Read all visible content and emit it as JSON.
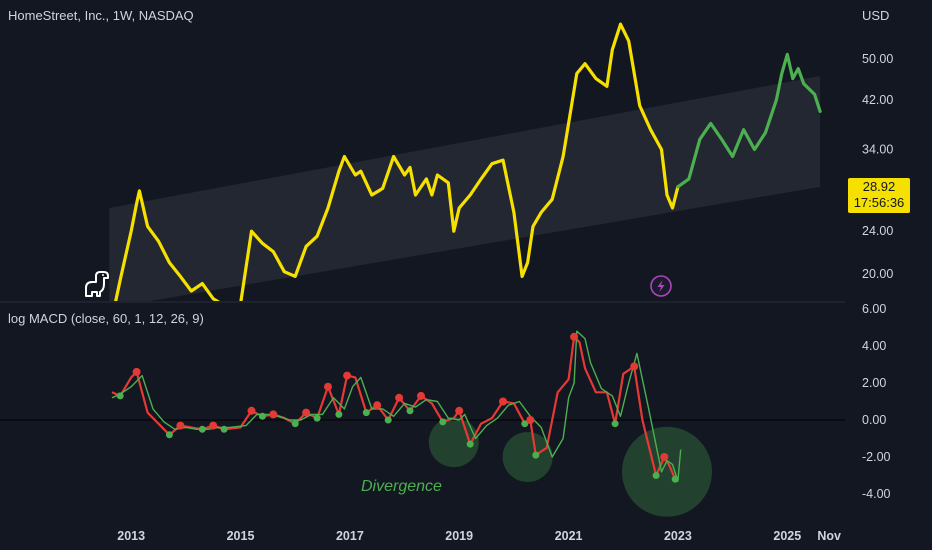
{
  "header": {
    "symbol_title": "HomeStreet, Inc., 1W, NASDAQ",
    "currency": "USD"
  },
  "price_tag": {
    "price": "28.92",
    "countdown": "17:56:36"
  },
  "macd": {
    "title": "log MACD (close, 60, 1, 12, 26, 9)"
  },
  "annotation": {
    "divergence": "Divergence"
  },
  "icons": {
    "logo": "dinosaur-logo-icon",
    "event": "lightning-event-icon"
  },
  "colors": {
    "background": "#131722",
    "price_old": "#f5e000",
    "price_new": "#4caf50",
    "macd_line": "#e53935",
    "signal_line": "#4caf50",
    "channel": "#2a2e39",
    "event": "#ab47bc"
  },
  "chart_data": [
    {
      "type": "line",
      "title": "HomeStreet, Inc., 1W, NASDAQ",
      "ylabel": "USD",
      "y_scale": "log",
      "yticks": [
        "50.00",
        "42.00",
        "34.00",
        "24.00",
        "20.00"
      ],
      "xticks": [
        "2013",
        "2015",
        "2017",
        "2019",
        "2021",
        "2023",
        "2025",
        "Nov"
      ],
      "ylim": [
        17.5,
        60
      ],
      "last_price": 28.92,
      "series": [
        {
          "color": "#f5e000",
          "x": [
            2012.7,
            2012.8,
            2013.0,
            2013.1,
            2013.15,
            2013.3,
            2013.5,
            2013.7,
            2013.9,
            2014.1,
            2014.3,
            2014.5,
            2014.7,
            2014.85,
            2015.0,
            2015.2,
            2015.4,
            2015.6,
            2015.8,
            2016.0,
            2016.2,
            2016.4,
            2016.6,
            2016.8,
            2016.9,
            2017.1,
            2017.2,
            2017.4,
            2017.6,
            2017.8,
            2018.0,
            2018.1,
            2018.2,
            2018.4,
            2018.5,
            2018.6,
            2018.8,
            2018.9,
            2019.0,
            2019.2,
            2019.4,
            2019.6,
            2019.8,
            2020.0,
            2020.15,
            2020.25,
            2020.35,
            2020.5,
            2020.7,
            2020.9,
            2021.0,
            2021.15,
            2021.3,
            2021.5,
            2021.7,
            2021.8,
            2021.95,
            2022.1,
            2022.3,
            2022.5,
            2022.7,
            2022.8,
            2022.9,
            2023.0
          ],
          "y": [
            17.5,
            19.5,
            24.0,
            27.0,
            28.5,
            24.5,
            23.0,
            21.0,
            19.8,
            18.6,
            19.2,
            18.0,
            17.5,
            17.3,
            17.6,
            24.0,
            22.8,
            22.0,
            20.2,
            19.8,
            22.5,
            23.5,
            26.5,
            31.0,
            33.0,
            30.5,
            31.0,
            28.0,
            28.8,
            33.0,
            30.5,
            31.5,
            28.0,
            30.0,
            28.0,
            30.5,
            29.5,
            24.0,
            26.5,
            28.0,
            30.0,
            32.0,
            32.5,
            26.0,
            19.8,
            21.0,
            24.5,
            26.0,
            27.5,
            33.0,
            38.0,
            47.0,
            49.0,
            46.0,
            44.5,
            52.0,
            58.0,
            54.0,
            41.0,
            37.0,
            34.0,
            28.0,
            26.5,
            29.0
          ]
        },
        {
          "color": "#4caf50",
          "x": [
            2023.0,
            2023.2,
            2023.4,
            2023.6,
            2023.8,
            2024.0,
            2024.2,
            2024.4,
            2024.6,
            2024.8,
            2024.9,
            2025.0,
            2025.1,
            2025.2,
            2025.3,
            2025.5,
            2025.6
          ],
          "y": [
            29.0,
            30.0,
            35.5,
            38.0,
            35.5,
            33.0,
            37.0,
            34.0,
            36.5,
            42.0,
            47.0,
            51.0,
            46.0,
            48.0,
            45.0,
            43.0,
            40.0
          ]
        }
      ],
      "channel": {
        "x": [
          2012.6,
          2025.6
        ],
        "upper": [
          26.5,
          46.5
        ],
        "lower": [
          17.3,
          29.0
        ]
      }
    },
    {
      "type": "line",
      "title": "log MACD (close, 60, 1, 12, 26, 9)",
      "yticks": [
        "6.00",
        "4.00",
        "2.00",
        "0.00",
        "-2.00",
        "-4.00"
      ],
      "ylim": [
        -5.2,
        6.5
      ],
      "zero_line": 0,
      "series": [
        {
          "color": "#e53935",
          "x": [
            2012.65,
            2012.8,
            2013.0,
            2013.1,
            2013.3,
            2013.5,
            2013.7,
            2013.9,
            2014.1,
            2014.3,
            2014.5,
            2014.7,
            2015.0,
            2015.2,
            2015.4,
            2015.6,
            2015.8,
            2016.0,
            2016.2,
            2016.4,
            2016.6,
            2016.8,
            2016.95,
            2017.1,
            2017.3,
            2017.5,
            2017.7,
            2017.9,
            2018.1,
            2018.3,
            2018.5,
            2018.7,
            2018.9,
            2019.0,
            2019.2,
            2019.4,
            2019.6,
            2019.8,
            2020.0,
            2020.2,
            2020.3,
            2020.4,
            2020.6,
            2020.8,
            2021.0,
            2021.1,
            2021.2,
            2021.3,
            2021.5,
            2021.7,
            2021.85,
            2022.0,
            2022.2,
            2022.35,
            2022.6,
            2022.75,
            2022.85,
            2022.95,
            2023.0
          ],
          "y": [
            1.5,
            1.3,
            2.3,
            2.6,
            0.4,
            -0.2,
            -0.8,
            -0.3,
            -0.4,
            -0.5,
            -0.3,
            -0.5,
            -0.4,
            0.5,
            0.2,
            0.3,
            0.1,
            -0.2,
            0.4,
            0.1,
            1.8,
            0.3,
            2.4,
            2.3,
            0.4,
            0.8,
            0.0,
            1.2,
            0.5,
            1.3,
            0.9,
            -0.1,
            0.1,
            0.5,
            -1.3,
            -0.2,
            0.1,
            1.0,
            0.9,
            -0.2,
            0.0,
            -1.9,
            -1.5,
            1.5,
            2.2,
            4.5,
            4.2,
            2.8,
            1.5,
            1.5,
            -0.2,
            2.5,
            2.9,
            0.0,
            -3.0,
            -2.0,
            -2.5,
            -3.2,
            -3.1
          ]
        },
        {
          "color": "#4caf50",
          "x": [
            2012.65,
            2012.8,
            2013.0,
            2013.2,
            2013.4,
            2013.6,
            2013.8,
            2014.0,
            2014.2,
            2014.4,
            2014.6,
            2014.8,
            2015.1,
            2015.3,
            2015.5,
            2015.7,
            2015.9,
            2016.1,
            2016.3,
            2016.5,
            2016.7,
            2016.9,
            2017.05,
            2017.2,
            2017.4,
            2017.6,
            2017.8,
            2018.0,
            2018.2,
            2018.4,
            2018.6,
            2018.8,
            2019.0,
            2019.1,
            2019.3,
            2019.5,
            2019.7,
            2019.9,
            2020.1,
            2020.3,
            2020.5,
            2020.7,
            2020.9,
            2021.0,
            2021.1,
            2021.15,
            2021.3,
            2021.4,
            2021.6,
            2021.8,
            2021.95,
            2022.1,
            2022.25,
            2022.45,
            2022.7,
            2022.8,
            2022.9,
            2023.0,
            2023.05
          ],
          "y": [
            1.2,
            1.4,
            1.8,
            2.4,
            0.6,
            -0.1,
            -0.5,
            -0.4,
            -0.5,
            -0.5,
            -0.4,
            -0.4,
            -0.3,
            0.3,
            0.3,
            0.2,
            0.0,
            0.0,
            0.3,
            0.3,
            1.2,
            0.6,
            1.8,
            2.3,
            0.6,
            0.6,
            0.2,
            0.9,
            0.7,
            1.1,
            1.0,
            0.1,
            0.0,
            0.3,
            -1.0,
            -0.3,
            0.1,
            0.8,
            1.0,
            0.2,
            -0.4,
            -2.0,
            -1.0,
            1.2,
            2.0,
            4.8,
            4.4,
            3.1,
            1.7,
            1.3,
            0.2,
            2.0,
            3.6,
            0.8,
            -2.8,
            -2.2,
            -2.4,
            -3.3,
            -1.6
          ]
        }
      ],
      "highlighted_regions": [
        {
          "x": 2018.9,
          "y": -1.2,
          "label": ""
        },
        {
          "x": 2020.25,
          "y": -2.0,
          "label": ""
        },
        {
          "x": 2022.8,
          "y": -2.8,
          "label": "Divergence"
        }
      ]
    }
  ]
}
